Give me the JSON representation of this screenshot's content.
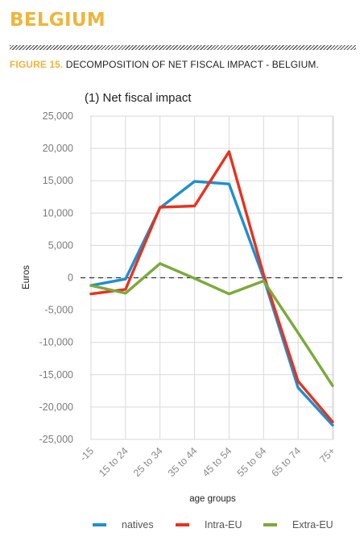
{
  "header": {
    "country": "BELGIUM",
    "figure_label": "FIGURE 15.",
    "figure_title": "DECOMPOSITION OF NET FISCAL IMPACT - BELGIUM."
  },
  "colors": {
    "accent": "#f0b43c",
    "natives": "#1e8fcf",
    "intra_eu": "#e8321e",
    "extra_eu": "#7aaa3a"
  },
  "chart_data": {
    "type": "line",
    "title": "(1) Net fiscal impact",
    "xlabel": "age groups",
    "ylabel": "Euros",
    "categories": [
      "-15",
      "15 to 24",
      "25 to 34",
      "35 to 44",
      "45 to 54",
      "55 to 64",
      "65 to 74",
      "75+"
    ],
    "ylim": [
      -25000,
      25000
    ],
    "yticks": [
      25000,
      20000,
      15000,
      10000,
      5000,
      0,
      -5000,
      -10000,
      -15000,
      -20000,
      -25000
    ],
    "ytick_labels": [
      "25,000",
      "20,000",
      "15,000",
      "10,000",
      "5,000",
      "0",
      "-5,000",
      "-10,000",
      "-15,000",
      "-20,000",
      "-25,000"
    ],
    "grid": true,
    "zero_line": "dashed",
    "legend_position": "bottom",
    "series": [
      {
        "name": "natives",
        "color": "#1e8fcf",
        "values": [
          -1200,
          -200,
          10800,
          14900,
          14500,
          0,
          -17000,
          -22800
        ]
      },
      {
        "name": "Intra-EU",
        "color": "#e8321e",
        "values": [
          -2500,
          -1800,
          10900,
          11100,
          19500,
          500,
          -16000,
          -22300
        ]
      },
      {
        "name": "Extra-EU",
        "color": "#7aaa3a",
        "values": [
          -1200,
          -2400,
          2200,
          -100,
          -2500,
          -500,
          -8500,
          -16700
        ]
      }
    ]
  }
}
